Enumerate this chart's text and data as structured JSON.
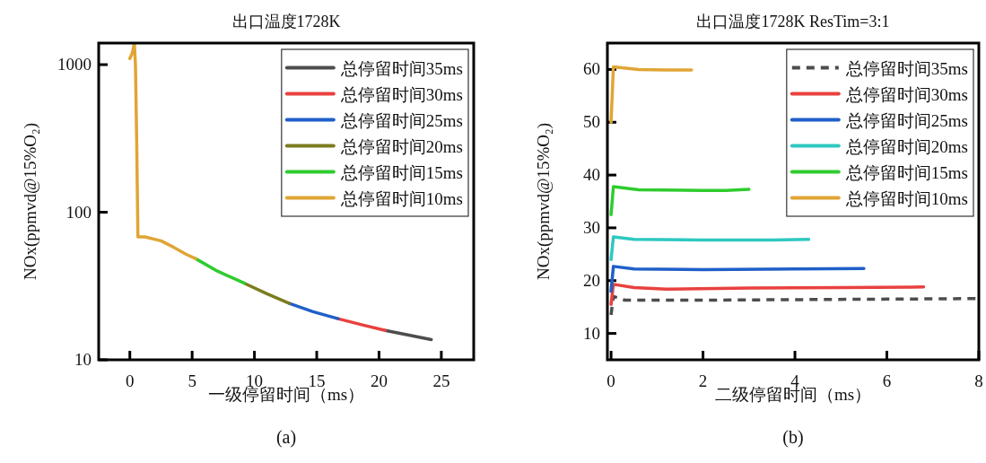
{
  "chart_data": [
    {
      "type": "line",
      "title": "出口温度1728K",
      "xlabel": "一级停留时间（ms）",
      "ylabel": "NOx(ppmvd@15%O₂)",
      "log": true,
      "xlim": [
        -2.5,
        27.6
      ],
      "ylim": [
        10,
        1400
      ],
      "xticks": [
        0,
        5,
        10,
        15,
        20,
        25
      ],
      "yticks": [
        10,
        100,
        1000
      ],
      "legend": "top right",
      "annotations": [
        "(a)"
      ],
      "series": [
        {
          "name": "总停留时间35ms",
          "color": "#4d4d4d",
          "x": [
            20.5,
            22.4,
            24.2
          ],
          "values": [
            15.8,
            14.7,
            13.7
          ]
        },
        {
          "name": "总停留时间30ms",
          "color": "#e8413f",
          "x": [
            16.7,
            18.6,
            20.5
          ],
          "values": [
            19,
            17.3,
            15.8
          ]
        },
        {
          "name": "总停留时间25ms",
          "color": "#1f5fc8",
          "x": [
            12.8,
            14.7,
            16.7
          ],
          "values": [
            24.1,
            21.2,
            19
          ]
        },
        {
          "name": "总停留时间20ms",
          "color": "#7c7c1e",
          "x": [
            9.2,
            11,
            12.8
          ],
          "values": [
            33,
            28,
            24.1
          ]
        },
        {
          "name": "总停留时间15ms",
          "color": "#2ecc2e",
          "x": [
            5.3,
            7,
            9.2
          ],
          "values": [
            48.4,
            40,
            33
          ]
        },
        {
          "name": "总停留时间10ms",
          "color": "#e0a535",
          "x": [
            0,
            0.2,
            0.36,
            0.45,
            0.55,
            0.65,
            1.2,
            2.5,
            3.5,
            4.5,
            5.3
          ],
          "values": [
            1100,
            1200,
            1400,
            1000,
            300,
            68,
            68,
            64,
            58,
            52,
            48.4
          ]
        }
      ]
    },
    {
      "type": "line",
      "title": "出口温度1728K ResTim=3:1",
      "xlabel": "二级停留时间（ms）",
      "ylabel": "NOx(ppmvd@15%O₂)",
      "xlim": [
        -0.08,
        8
      ],
      "ylim": [
        5,
        65
      ],
      "xticks": [
        0,
        2,
        4,
        6,
        8
      ],
      "yticks": [
        10,
        20,
        30,
        40,
        50,
        60
      ],
      "legend": "top right",
      "annotations": [
        "(b)"
      ],
      "series": [
        {
          "name": "总停留时间35ms",
          "color": "#4d4d4d",
          "line_style": "dashed",
          "x": [
            0,
            0.05,
            0.3,
            2,
            4,
            6,
            8
          ],
          "values": [
            13.5,
            17,
            16.3,
            16.3,
            16.4,
            16.5,
            16.6
          ]
        },
        {
          "name": "总停留时间30ms",
          "color": "#e8413f",
          "x": [
            0,
            0.05,
            0.5,
            1.2,
            3,
            5,
            6.8
          ],
          "values": [
            15.5,
            19.3,
            18.7,
            18.4,
            18.6,
            18.7,
            18.8
          ]
        },
        {
          "name": "总停留时间25ms",
          "color": "#1f5fc8",
          "x": [
            0,
            0.05,
            0.5,
            2,
            4,
            5.5
          ],
          "values": [
            18,
            22.7,
            22.2,
            22.1,
            22.2,
            22.3
          ]
        },
        {
          "name": "总停留时间20ms",
          "color": "#2ec8c0",
          "x": [
            0,
            0.05,
            0.5,
            2,
            3.5,
            4.3
          ],
          "values": [
            24,
            28.3,
            27.8,
            27.7,
            27.7,
            27.8
          ]
        },
        {
          "name": "总停留时间15ms",
          "color": "#2ecc2e",
          "x": [
            0,
            0.05,
            0.6,
            2,
            2.5,
            3
          ],
          "values": [
            32.5,
            37.8,
            37.2,
            37.1,
            37.1,
            37.3
          ]
        },
        {
          "name": "总停留时间10ms",
          "color": "#e0a535",
          "x": [
            0,
            0.05,
            0.6,
            1.2,
            1.75
          ],
          "values": [
            50,
            60.5,
            60,
            59.9,
            59.9
          ]
        }
      ]
    }
  ]
}
